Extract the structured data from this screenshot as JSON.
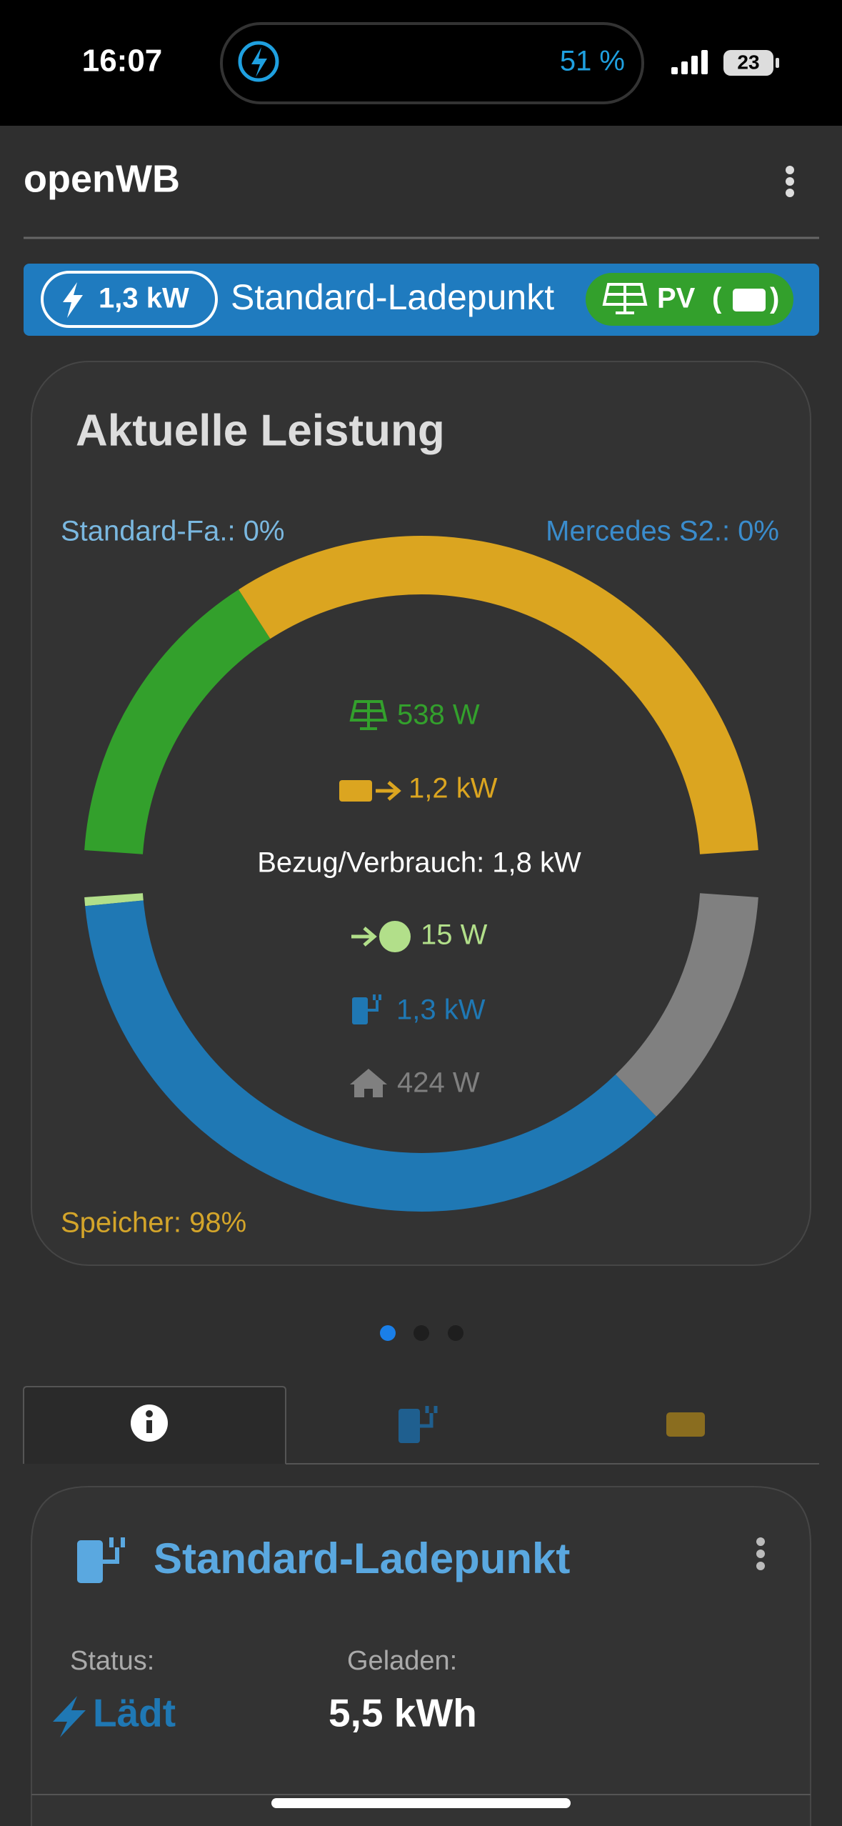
{
  "status_bar": {
    "time": "16:07",
    "battery_text": "51 %",
    "signal_battery": "23"
  },
  "header": {
    "title": "openWB"
  },
  "banner": {
    "power": "1,3 kW",
    "chargepoint": "Standard-Ladepunkt",
    "mode": "PV"
  },
  "power_card": {
    "title": "Aktuelle Leistung",
    "vehicle_left": "Standard-Fa.: 0%",
    "vehicle_right": "Mercedes S2.: 0%",
    "summary": "Bezug/Verbrauch: 1,8 kW",
    "storage": "Speicher: 98%",
    "sources": [
      {
        "value": 538,
        "label": "538 W",
        "color": "#33a02c"
      },
      {
        "value": 1200,
        "label": "1,2 kW",
        "color": "#dba520"
      }
    ],
    "consumers": [
      {
        "value": 15,
        "label": "15 W",
        "color": "#b2df8a"
      },
      {
        "value": 1300,
        "label": "1,3 kW",
        "color": "#1f78b4"
      },
      {
        "value": 424,
        "label": "424 W",
        "color": "#808080"
      }
    ]
  },
  "charge_point": {
    "title": "Standard-Ladepunkt",
    "status_label": "Status:",
    "status": "Lädt",
    "charged_label": "Geladen:",
    "charged": "5,5 kWh"
  }
}
